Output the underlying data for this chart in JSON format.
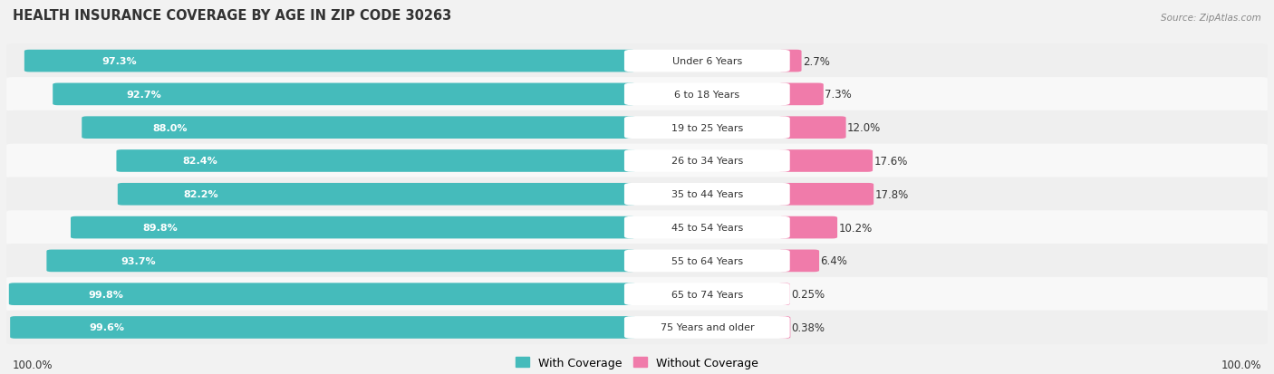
{
  "title": "HEALTH INSURANCE COVERAGE BY AGE IN ZIP CODE 30263",
  "source": "Source: ZipAtlas.com",
  "categories": [
    "Under 6 Years",
    "6 to 18 Years",
    "19 to 25 Years",
    "26 to 34 Years",
    "35 to 44 Years",
    "45 to 54 Years",
    "55 to 64 Years",
    "65 to 74 Years",
    "75 Years and older"
  ],
  "with_coverage": [
    97.3,
    92.7,
    88.0,
    82.4,
    82.2,
    89.8,
    93.7,
    99.8,
    99.6
  ],
  "without_coverage": [
    2.7,
    7.3,
    12.0,
    17.6,
    17.8,
    10.2,
    6.4,
    0.25,
    0.38
  ],
  "with_coverage_labels": [
    "97.3%",
    "92.7%",
    "88.0%",
    "82.4%",
    "82.2%",
    "89.8%",
    "93.7%",
    "99.8%",
    "99.6%"
  ],
  "without_coverage_labels": [
    "2.7%",
    "7.3%",
    "12.0%",
    "17.6%",
    "17.8%",
    "10.2%",
    "6.4%",
    "0.25%",
    "0.38%"
  ],
  "color_with": "#45BBBB",
  "color_without": "#F07BAA",
  "color_with_light": "#7DD4D4",
  "color_without_light": "#F4AECB",
  "bg_odd": "#EFEFEF",
  "bg_even": "#F8F8F8",
  "label_bg": "#FFFFFF",
  "title_fontsize": 10.5,
  "label_fontsize": 8.5,
  "legend_fontsize": 9,
  "x_axis_left_label": "100.0%",
  "x_axis_right_label": "100.0%"
}
